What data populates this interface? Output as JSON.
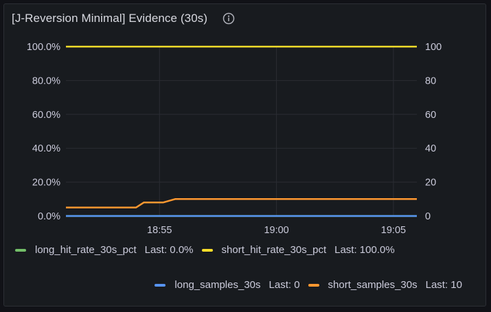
{
  "panel": {
    "title": "[J-Reversion Minimal] Evidence (30s)",
    "info_icon": "info-circle-icon"
  },
  "chart_data": {
    "type": "line",
    "title": "[J-Reversion Minimal] Evidence (30s)",
    "x_tick_labels": [
      "18:55",
      "19:00",
      "19:05"
    ],
    "left_axis": {
      "ticks": [
        "0.0%",
        "20.0%",
        "40.0%",
        "60.0%",
        "80.0%",
        "100.0%"
      ],
      "ylim": [
        0,
        100
      ]
    },
    "right_axis": {
      "ticks": [
        "0",
        "20",
        "40",
        "60",
        "80",
        "100"
      ],
      "ylim": [
        0,
        100
      ]
    },
    "x_range": [
      "18:51:00",
      "19:06:00"
    ],
    "x": [
      "18:51:00",
      "18:54:00",
      "18:54:20",
      "18:55:00",
      "18:55:10",
      "18:55:40",
      "18:56:00",
      "19:06:00"
    ],
    "grid": true,
    "legend_position": "bottom",
    "series": [
      {
        "name": "long_hit_rate_30s_pct",
        "axis": "left",
        "color": "#73bf69",
        "values": [
          0,
          0,
          0,
          0,
          0,
          0,
          0,
          0
        ],
        "last": "Last: 0.0%"
      },
      {
        "name": "short_hit_rate_30s_pct",
        "axis": "left",
        "color": "#fade2a",
        "values": [
          100,
          100,
          100,
          100,
          100,
          100,
          100,
          100
        ],
        "last": "Last: 100.0%"
      },
      {
        "name": "long_samples_30s",
        "axis": "right",
        "color": "#5794f2",
        "values": [
          0,
          0,
          0,
          0,
          0,
          0,
          0,
          0
        ],
        "last": "Last: 0"
      },
      {
        "name": "short_samples_30s",
        "axis": "right",
        "color": "#ff9830",
        "values": [
          5,
          5,
          8,
          8,
          8,
          10,
          10,
          10
        ],
        "last": "Last: 10"
      }
    ]
  }
}
